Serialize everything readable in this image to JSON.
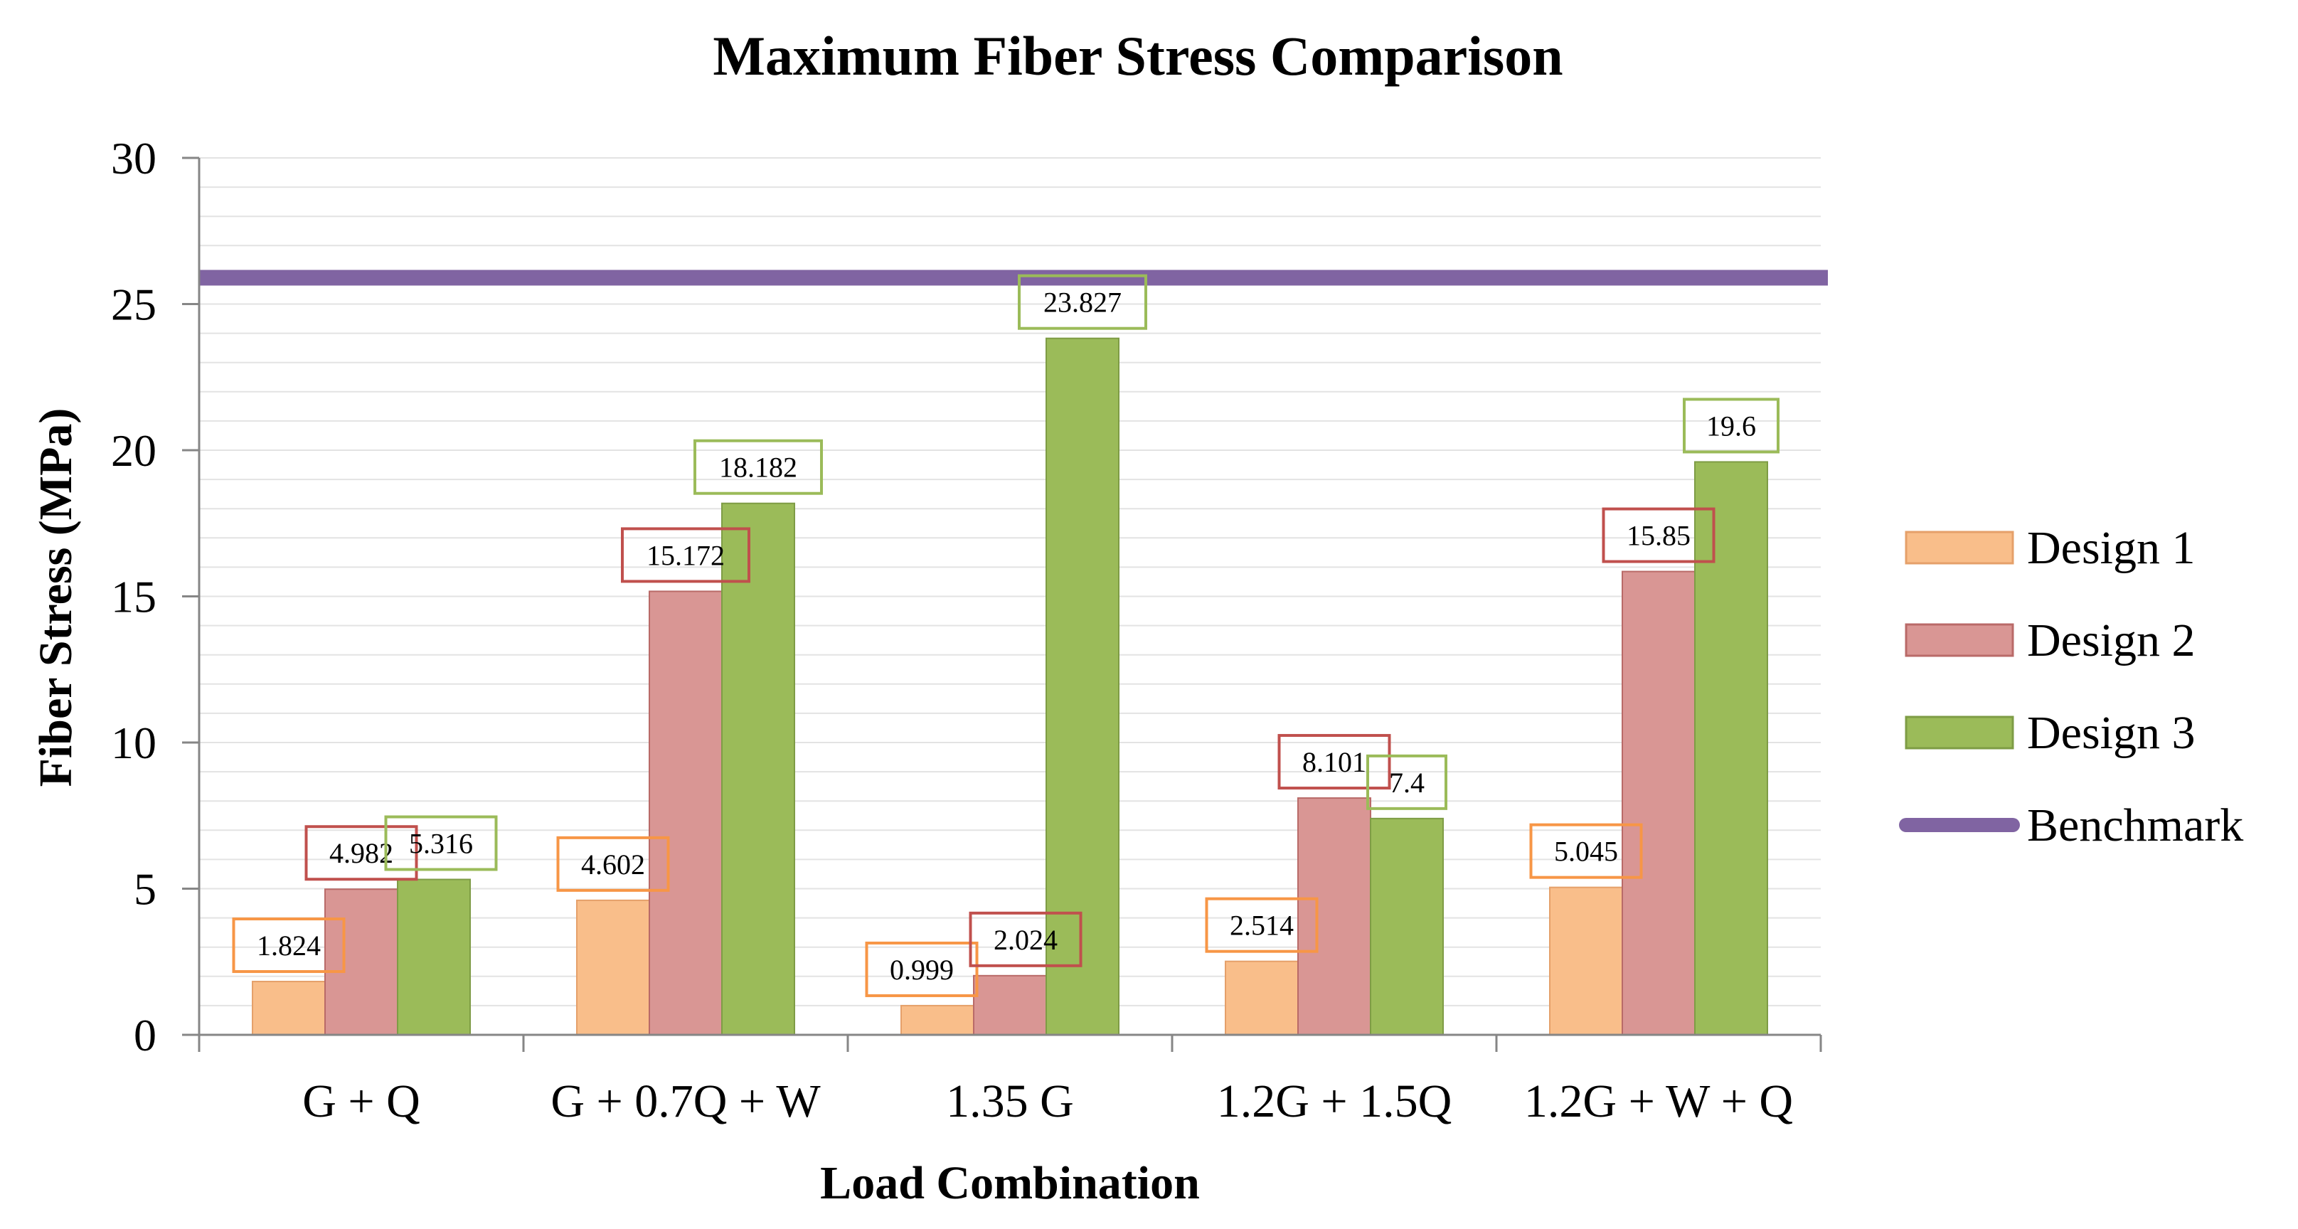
{
  "chart_data": {
    "type": "bar",
    "title": "Maximum Fiber Stress Comparison",
    "xlabel": "Load Combination",
    "ylabel": "Fiber Stress (MPa)",
    "ylim": [
      0,
      30
    ],
    "ytick_step": 5,
    "minor_grid_step": 1,
    "grid": true,
    "legend_position": "right",
    "categories": [
      "G + Q",
      "G + 0.7Q + W",
      "1.35 G",
      "1.2G + 1.5Q",
      "1.2G + W + Q"
    ],
    "series": [
      {
        "name": "Design 1",
        "values": [
          1.824,
          4.602,
          0.999,
          2.514,
          5.045
        ],
        "labels": [
          "1.824",
          "4.602",
          "0.999",
          "2.514",
          "5.045"
        ],
        "fill": "#F9BE8A",
        "stroke": "#E5A06A",
        "label_border": "#F79646"
      },
      {
        "name": "Design 2",
        "values": [
          4.982,
          15.172,
          2.024,
          8.101,
          15.85
        ],
        "labels": [
          "4.982",
          "15.172",
          "2.024",
          "8.101",
          "15.85"
        ],
        "fill": "#D99694",
        "stroke": "#B96A68",
        "label_border": "#C0504D"
      },
      {
        "name": "Design 3",
        "values": [
          5.316,
          18.182,
          23.827,
          7.4,
          19.6
        ],
        "labels": [
          "5.316",
          "18.182",
          "23.827",
          "7.4",
          "19.6"
        ],
        "fill": "#9BBB59",
        "stroke": "#7E9C45",
        "label_border": "#9BBB59"
      }
    ],
    "benchmark": {
      "name": "Benchmark",
      "value": 25.9,
      "color": "#8064A2"
    }
  }
}
